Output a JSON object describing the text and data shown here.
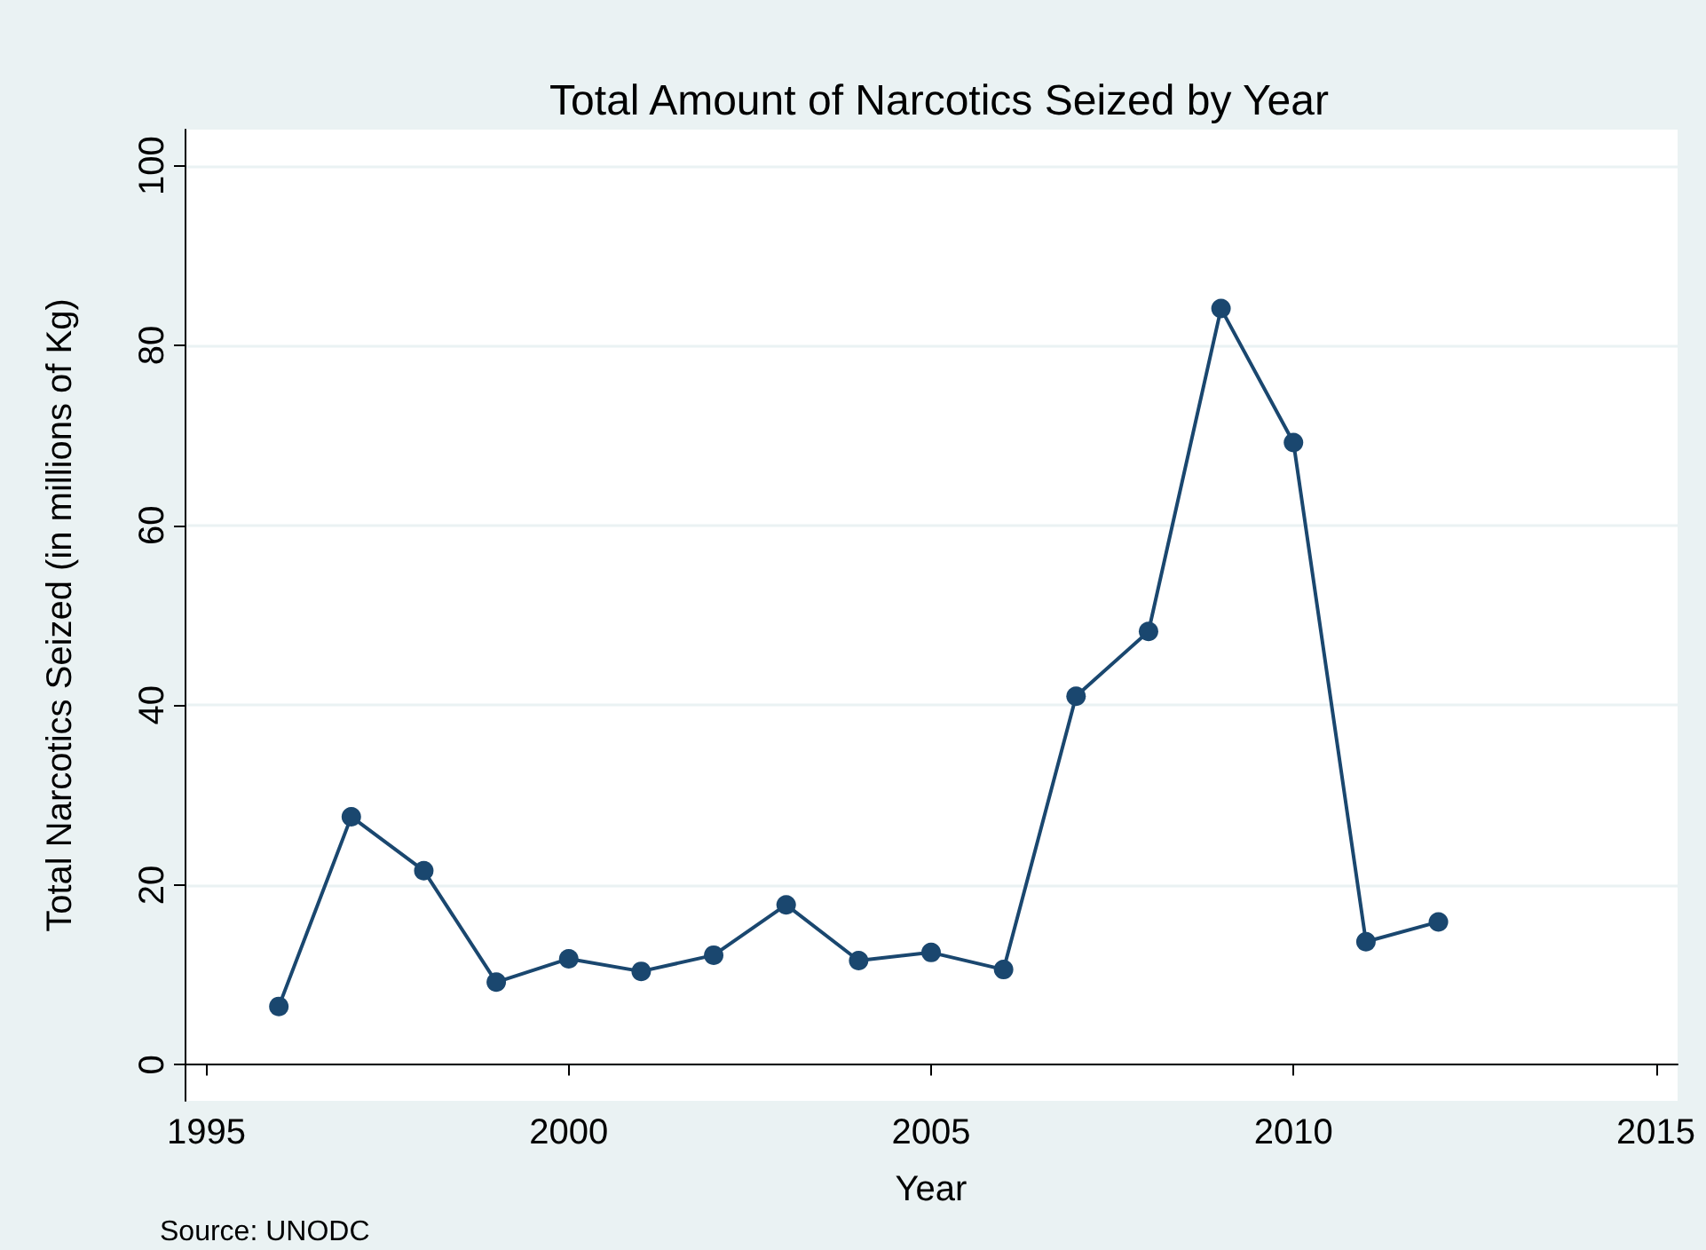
{
  "chart_data": {
    "type": "line",
    "title": "Total Amount of Narcotics Seized by Year",
    "xlabel": "Year",
    "ylabel": "Total Narcotics Seized (in millions of Kg)",
    "annotations": [
      "Source: UNODC"
    ],
    "x": [
      1996,
      1997,
      1998,
      1999,
      2000,
      2001,
      2002,
      2003,
      2004,
      2005,
      2006,
      2007,
      2008,
      2009,
      2010,
      2011,
      2012
    ],
    "series": [
      {
        "color": "#1a476f",
        "values": [
          6.5,
          27.6,
          21.6,
          9.2,
          11.8,
          10.4,
          12.2,
          17.8,
          11.6,
          12.5,
          10.6,
          41.0,
          48.2,
          84.1,
          69.2,
          13.7,
          15.9
        ]
      }
    ],
    "xlim": [
      1994.7,
      2015.3
    ],
    "xticks": [
      1995,
      2000,
      2005,
      2010,
      2015
    ],
    "ylim": [
      -4,
      104
    ],
    "yticks": [
      0,
      20,
      40,
      60,
      80,
      100
    ],
    "grid": "y",
    "marker": "circle",
    "line_style": "solid"
  }
}
